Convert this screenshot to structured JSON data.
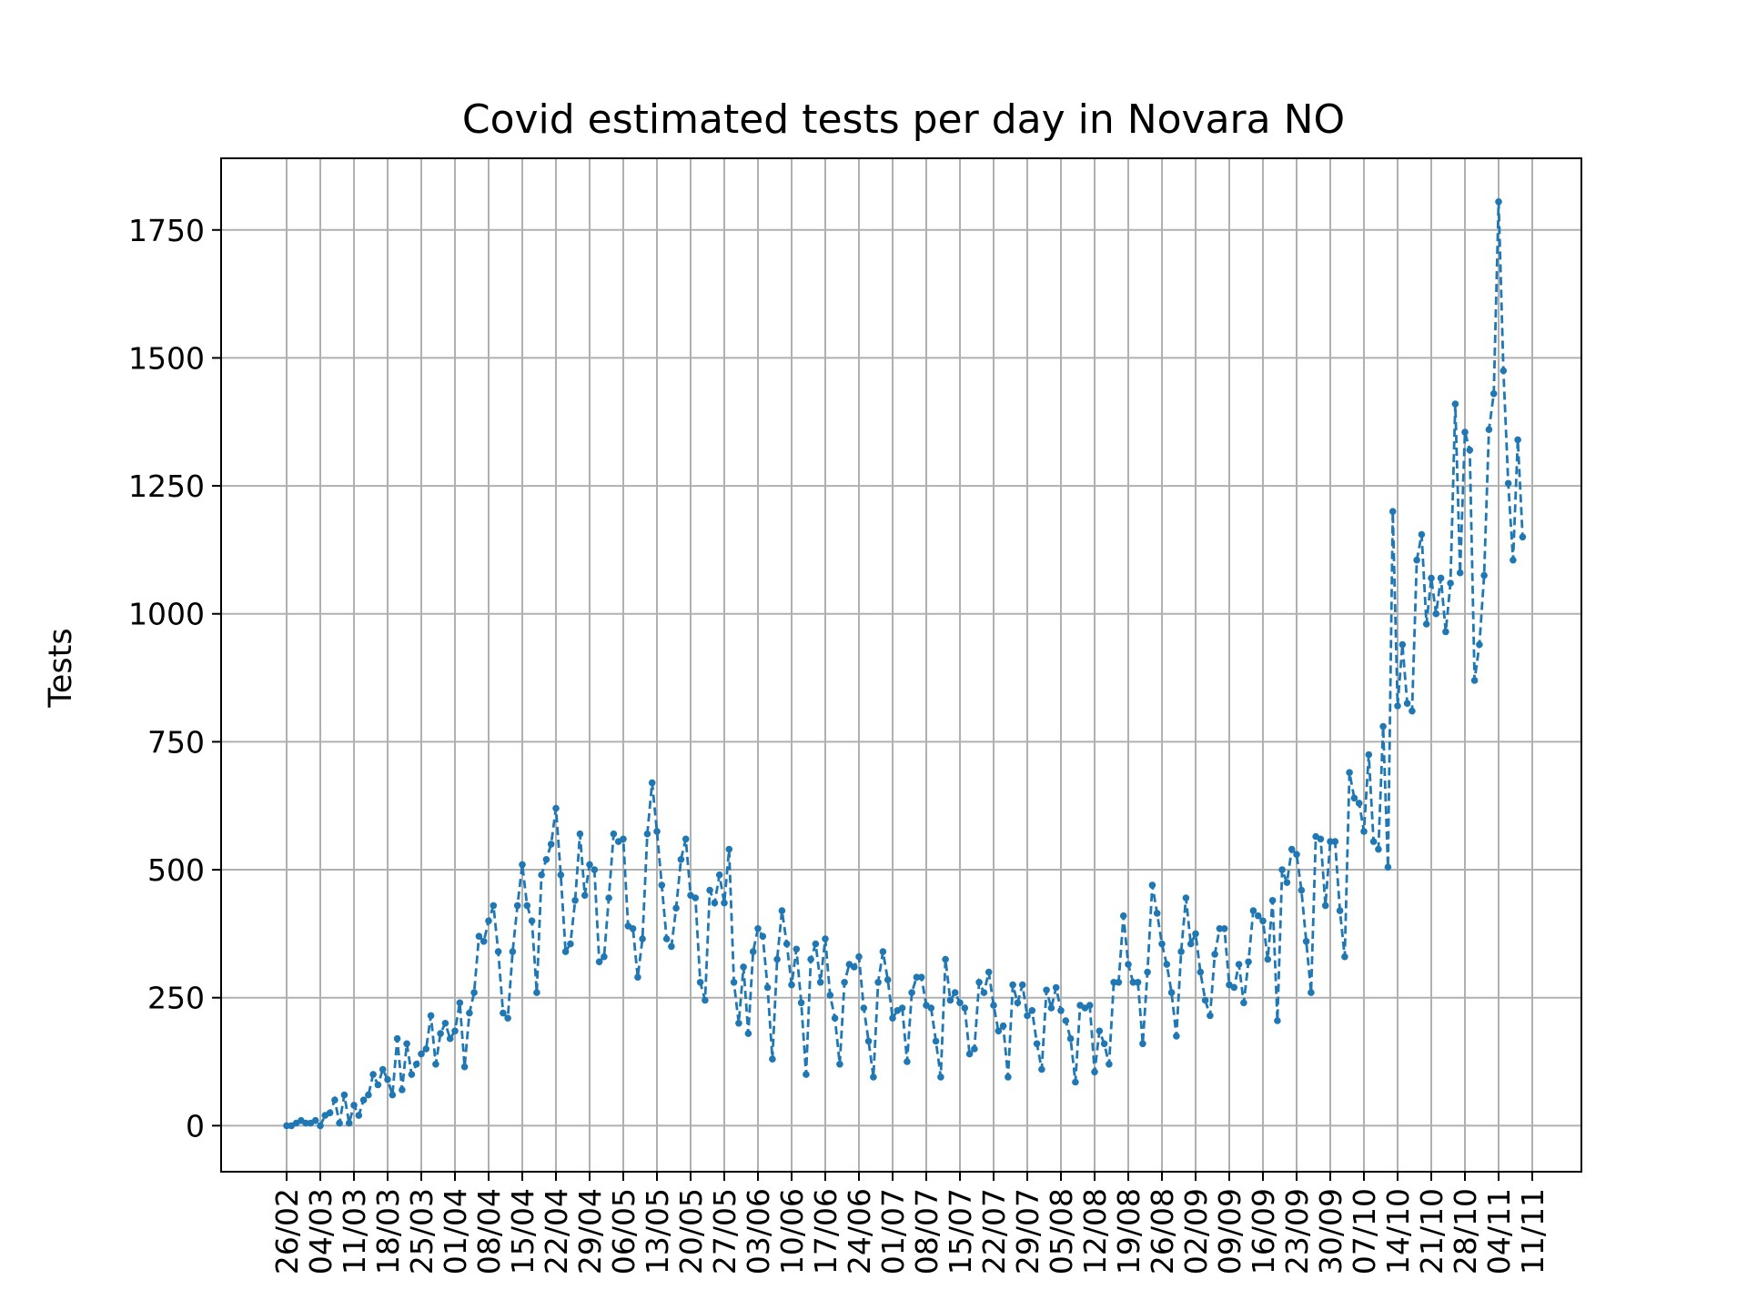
{
  "chart_data": {
    "type": "line",
    "title": "Covid estimated tests per day in Novara NO",
    "xlabel": "",
    "ylabel": "Tests",
    "grid": true,
    "line_style": "dashed",
    "marker": "dot",
    "colors": {
      "line": "#1f77b4",
      "marker": "#1f77b4",
      "grid": "#b0b0b0"
    },
    "ylim": [
      -90,
      1890
    ],
    "yticks": [
      0,
      250,
      500,
      750,
      1000,
      1250,
      1500,
      1750
    ],
    "xtick_labels": [
      "26/02",
      "04/03",
      "11/03",
      "18/03",
      "25/03",
      "01/04",
      "08/04",
      "15/04",
      "22/04",
      "29/04",
      "06/05",
      "13/05",
      "20/05",
      "27/05",
      "03/06",
      "10/06",
      "17/06",
      "24/06",
      "01/07",
      "08/07",
      "15/07",
      "22/07",
      "29/07",
      "05/08",
      "12/08",
      "19/08",
      "26/08",
      "02/09",
      "09/09",
      "16/09",
      "23/09",
      "30/09",
      "07/10",
      "14/10",
      "21/10",
      "28/10",
      "04/11",
      "11/11"
    ],
    "start_label": "26/02",
    "series": [
      {
        "values": [
          0,
          0,
          5,
          10,
          5,
          5,
          10,
          0,
          20,
          25,
          50,
          5,
          60,
          5,
          40,
          20,
          50,
          60,
          100,
          80,
          110,
          90,
          60,
          170,
          70,
          160,
          100,
          120,
          140,
          150,
          215,
          120,
          180,
          200,
          170,
          185,
          240,
          115,
          220,
          260,
          370,
          360,
          400,
          430,
          340,
          220,
          210,
          340,
          430,
          510,
          430,
          400,
          260,
          490,
          520,
          550,
          620,
          490,
          340,
          355,
          440,
          570,
          450,
          510,
          500,
          320,
          330,
          445,
          570,
          555,
          560,
          390,
          385,
          290,
          365,
          570,
          670,
          575,
          470,
          365,
          350,
          425,
          520,
          560,
          450,
          445,
          280,
          245,
          460,
          435,
          490,
          435,
          540,
          280,
          200,
          310,
          180,
          340,
          385,
          370,
          270,
          130,
          325,
          420,
          355,
          275,
          345,
          240,
          100,
          325,
          355,
          280,
          365,
          255,
          210,
          120,
          280,
          315,
          310,
          330,
          230,
          165,
          95,
          280,
          340,
          285,
          210,
          225,
          230,
          125,
          260,
          290,
          290,
          235,
          230,
          165,
          95,
          325,
          245,
          260,
          240,
          230,
          140,
          150,
          280,
          260,
          300,
          235,
          185,
          195,
          95,
          275,
          240,
          275,
          215,
          225,
          160,
          110,
          265,
          230,
          270,
          225,
          205,
          170,
          85,
          235,
          230,
          235,
          105,
          185,
          160,
          120,
          280,
          280,
          410,
          315,
          280,
          280,
          160,
          300,
          470,
          415,
          355,
          315,
          260,
          175,
          340,
          445,
          355,
          375,
          300,
          245,
          215,
          335,
          385,
          385,
          275,
          270,
          315,
          240,
          320,
          420,
          410,
          400,
          325,
          440,
          205,
          500,
          475,
          540,
          530,
          460,
          360,
          260,
          565,
          560,
          430,
          555,
          555,
          420,
          330,
          690,
          640,
          630,
          575,
          725,
          555,
          540,
          780,
          505,
          1200,
          820,
          940,
          825,
          810,
          1105,
          1155,
          980,
          1070,
          1000,
          1070,
          965,
          1060,
          1410,
          1080,
          1355,
          1320,
          870,
          940,
          1075,
          1360,
          1430,
          1805,
          1475,
          1255,
          1105,
          1340,
          1150
        ]
      }
    ]
  }
}
